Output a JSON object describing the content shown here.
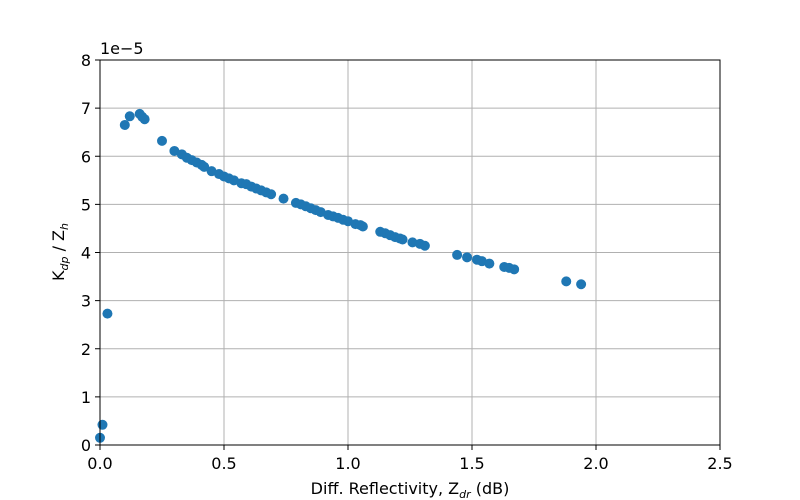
{
  "chart_data": {
    "type": "scatter",
    "xlabel": {
      "main": "Diff. Reflectivity, Z",
      "sub": "dr",
      "unit": " (dB)"
    },
    "ylabel": {
      "k": "K",
      "k_sub": "dp",
      "sep": " / Z",
      "z_sub": "h"
    },
    "xlim": [
      0.0,
      2.5
    ],
    "ylim": [
      0,
      8
    ],
    "x_ticks": [
      "0.0",
      "0.5",
      "1.0",
      "1.5",
      "2.0",
      "2.5"
    ],
    "y_ticks": [
      "0",
      "1",
      "2",
      "3",
      "4",
      "5",
      "6",
      "7",
      "8"
    ],
    "y_scale_text": "1e−5",
    "grid": true,
    "marker_color": "#1f77b4",
    "points": [
      {
        "x": 0.0,
        "y": 0.15
      },
      {
        "x": 0.01,
        "y": 0.42
      },
      {
        "x": 0.03,
        "y": 2.73
      },
      {
        "x": 0.1,
        "y": 6.65
      },
      {
        "x": 0.12,
        "y": 6.83
      },
      {
        "x": 0.16,
        "y": 6.88
      },
      {
        "x": 0.17,
        "y": 6.82
      },
      {
        "x": 0.18,
        "y": 6.77
      },
      {
        "x": 0.25,
        "y": 6.32
      },
      {
        "x": 0.3,
        "y": 6.11
      },
      {
        "x": 0.33,
        "y": 6.04
      },
      {
        "x": 0.35,
        "y": 5.97
      },
      {
        "x": 0.37,
        "y": 5.92
      },
      {
        "x": 0.39,
        "y": 5.87
      },
      {
        "x": 0.41,
        "y": 5.82
      },
      {
        "x": 0.42,
        "y": 5.78
      },
      {
        "x": 0.45,
        "y": 5.69
      },
      {
        "x": 0.48,
        "y": 5.63
      },
      {
        "x": 0.5,
        "y": 5.58
      },
      {
        "x": 0.52,
        "y": 5.54
      },
      {
        "x": 0.54,
        "y": 5.5
      },
      {
        "x": 0.57,
        "y": 5.44
      },
      {
        "x": 0.59,
        "y": 5.42
      },
      {
        "x": 0.61,
        "y": 5.37
      },
      {
        "x": 0.63,
        "y": 5.33
      },
      {
        "x": 0.65,
        "y": 5.29
      },
      {
        "x": 0.67,
        "y": 5.25
      },
      {
        "x": 0.69,
        "y": 5.21
      },
      {
        "x": 0.74,
        "y": 5.12
      },
      {
        "x": 0.79,
        "y": 5.03
      },
      {
        "x": 0.81,
        "y": 5.0
      },
      {
        "x": 0.83,
        "y": 4.96
      },
      {
        "x": 0.85,
        "y": 4.92
      },
      {
        "x": 0.87,
        "y": 4.88
      },
      {
        "x": 0.89,
        "y": 4.84
      },
      {
        "x": 0.92,
        "y": 4.78
      },
      {
        "x": 0.94,
        "y": 4.75
      },
      {
        "x": 0.96,
        "y": 4.72
      },
      {
        "x": 0.98,
        "y": 4.68
      },
      {
        "x": 1.0,
        "y": 4.65
      },
      {
        "x": 1.03,
        "y": 4.59
      },
      {
        "x": 1.05,
        "y": 4.57
      },
      {
        "x": 1.06,
        "y": 4.54
      },
      {
        "x": 1.13,
        "y": 4.43
      },
      {
        "x": 1.15,
        "y": 4.4
      },
      {
        "x": 1.17,
        "y": 4.36
      },
      {
        "x": 1.19,
        "y": 4.32
      },
      {
        "x": 1.21,
        "y": 4.29
      },
      {
        "x": 1.22,
        "y": 4.27
      },
      {
        "x": 1.26,
        "y": 4.21
      },
      {
        "x": 1.29,
        "y": 4.18
      },
      {
        "x": 1.31,
        "y": 4.14
      },
      {
        "x": 1.44,
        "y": 3.95
      },
      {
        "x": 1.48,
        "y": 3.9
      },
      {
        "x": 1.52,
        "y": 3.85
      },
      {
        "x": 1.54,
        "y": 3.82
      },
      {
        "x": 1.57,
        "y": 3.77
      },
      {
        "x": 1.63,
        "y": 3.7
      },
      {
        "x": 1.65,
        "y": 3.68
      },
      {
        "x": 1.67,
        "y": 3.65
      },
      {
        "x": 1.88,
        "y": 3.4
      },
      {
        "x": 1.94,
        "y": 3.34
      }
    ]
  }
}
